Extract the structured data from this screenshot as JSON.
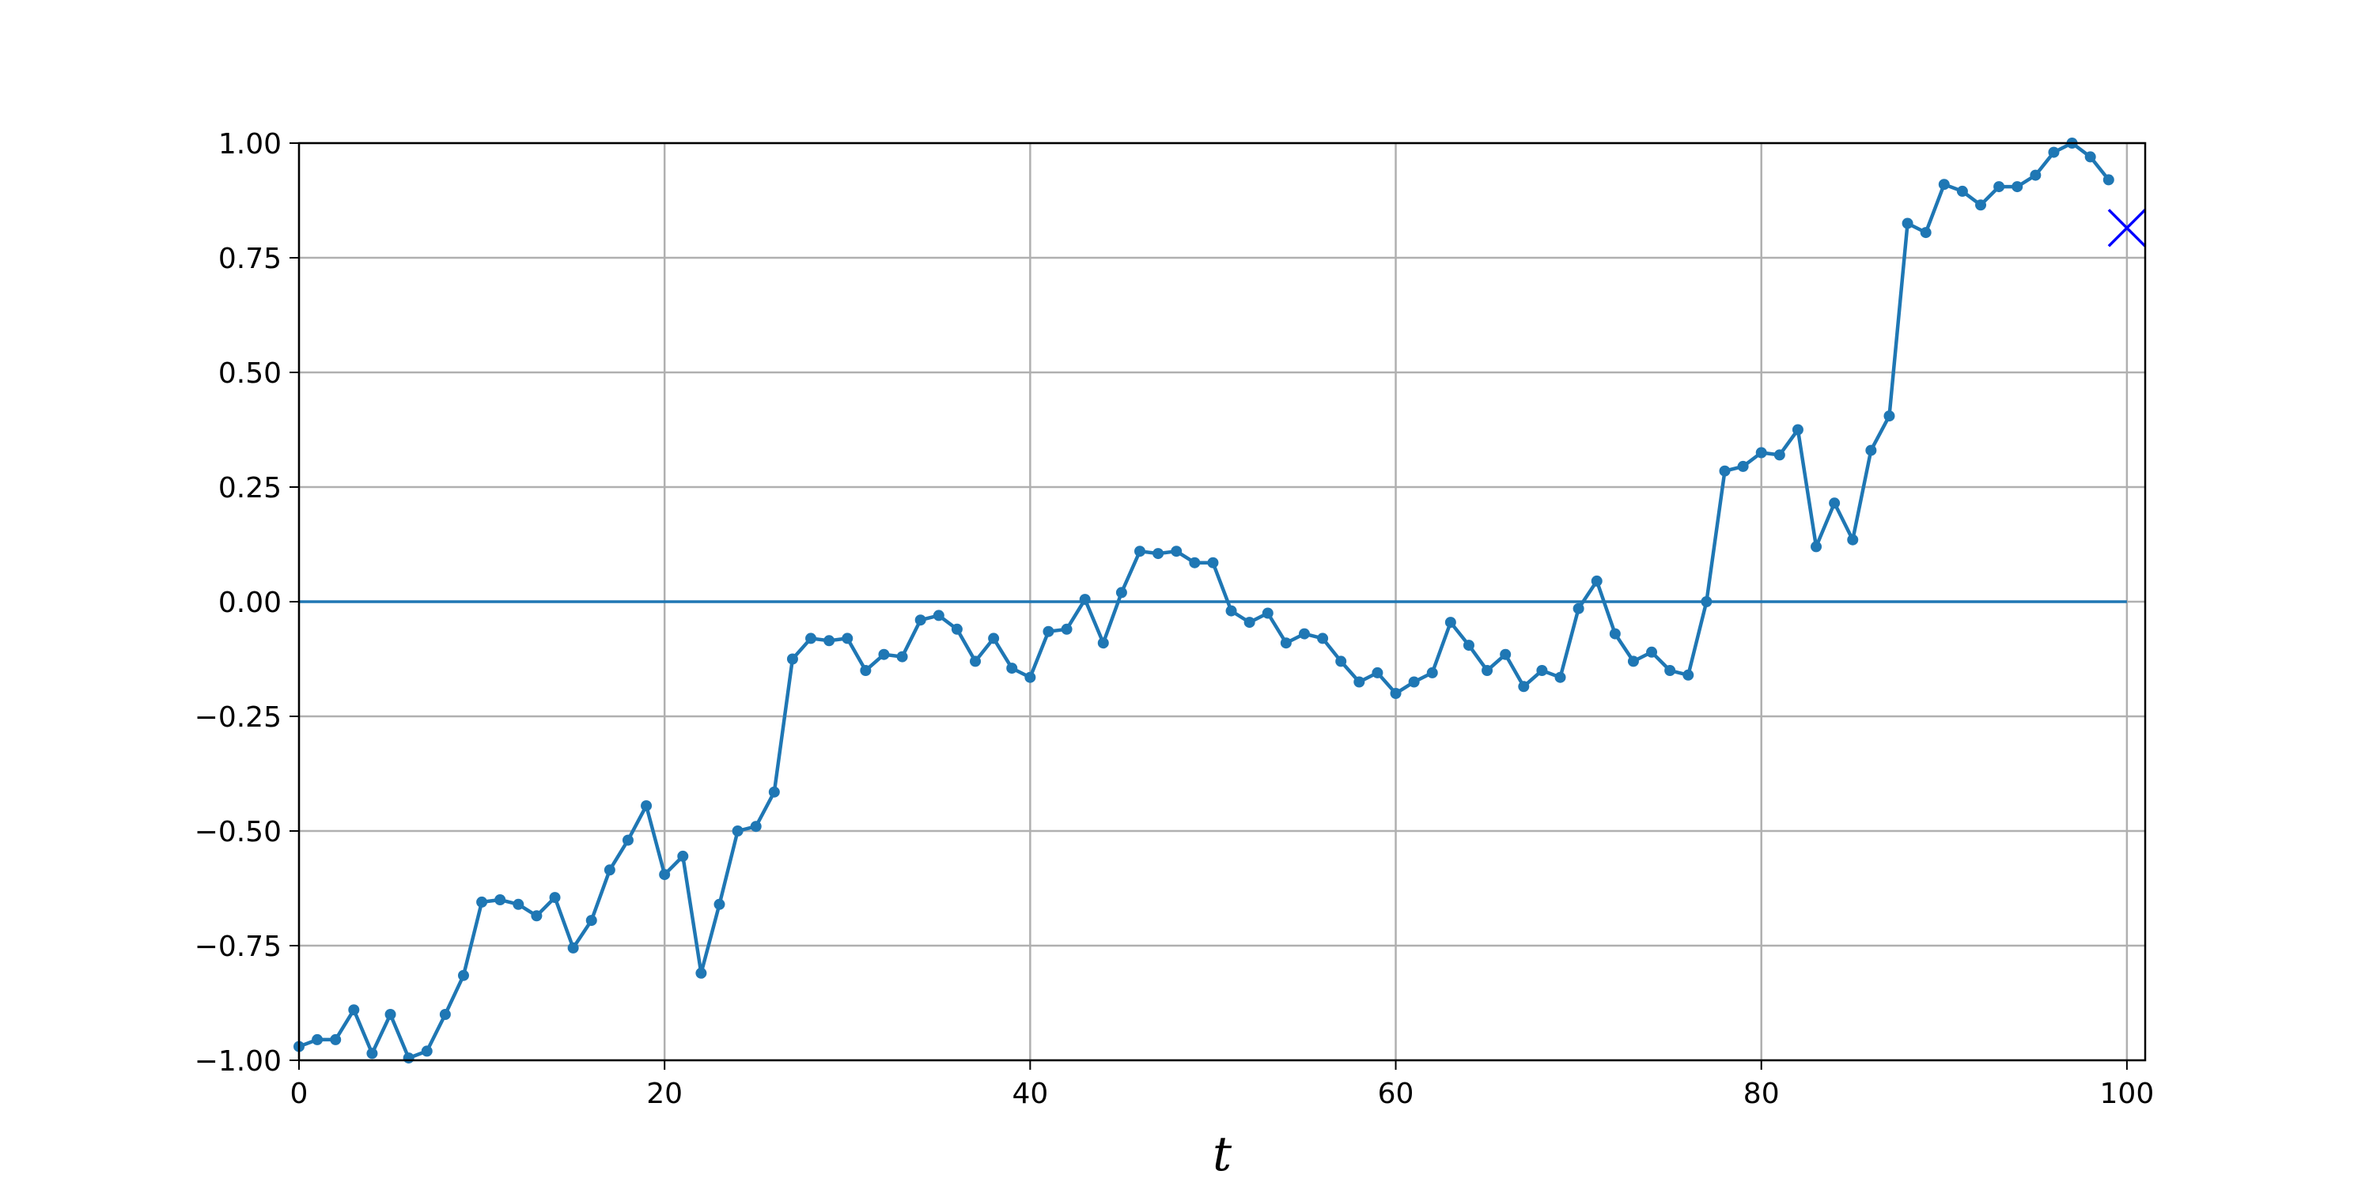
{
  "chart_data": {
    "type": "line",
    "title": "",
    "xlabel": "t",
    "ylabel": "",
    "xlim": [
      0,
      101
    ],
    "ylim": [
      -1.0,
      1.0
    ],
    "grid": true,
    "legend": "none",
    "x_ticks": [
      0,
      20,
      40,
      60,
      80,
      100
    ],
    "x_tick_labels": [
      "0",
      "20",
      "40",
      "60",
      "80",
      "100"
    ],
    "y_ticks": [
      -1.0,
      -0.75,
      -0.5,
      -0.25,
      0.0,
      0.25,
      0.5,
      0.75,
      1.0
    ],
    "y_tick_labels": [
      "−1.00",
      "−0.75",
      "−0.50",
      "−0.25",
      "0.00",
      "0.25",
      "0.50",
      "0.75",
      "1.00"
    ],
    "colors": {
      "series": "#1f77b4",
      "marker_x": "#0000ff",
      "grid": "#b0b0b0"
    },
    "series": [
      {
        "x": [
          0,
          1,
          2,
          3,
          4,
          5,
          6,
          7,
          8,
          9,
          10,
          11,
          12,
          13,
          14,
          15,
          16,
          17,
          18,
          19,
          20,
          21,
          22,
          23,
          24,
          25,
          26,
          27,
          28,
          29,
          30,
          31,
          32,
          33,
          34,
          35,
          36,
          37,
          38,
          39,
          40,
          41,
          42,
          43,
          44,
          45,
          46,
          47,
          48,
          49,
          50,
          51,
          52,
          53,
          54,
          55,
          56,
          57,
          58,
          59,
          60,
          61,
          62,
          63,
          64,
          65,
          66,
          67,
          68,
          69,
          70,
          71,
          72,
          73,
          74,
          75,
          76,
          77,
          78,
          79,
          80,
          81,
          82,
          83,
          84,
          85,
          86,
          87,
          88,
          89,
          90,
          91,
          92,
          93,
          94,
          95,
          96,
          97,
          98,
          99
        ],
        "y": [
          -0.97,
          -0.955,
          -0.955,
          -0.89,
          -0.985,
          -0.9,
          -0.995,
          -0.98,
          -0.9,
          -0.815,
          -0.655,
          -0.65,
          -0.66,
          -0.685,
          -0.645,
          -0.755,
          -0.695,
          -0.585,
          -0.52,
          -0.445,
          -0.595,
          -0.555,
          -0.81,
          -0.66,
          -0.5,
          -0.49,
          -0.415,
          -0.125,
          -0.08,
          -0.085,
          -0.08,
          -0.15,
          -0.115,
          -0.12,
          -0.04,
          -0.03,
          -0.06,
          -0.13,
          -0.08,
          -0.145,
          -0.165,
          -0.065,
          -0.06,
          0.005,
          -0.09,
          0.02,
          0.11,
          0.105,
          0.11,
          0.085,
          0.085,
          -0.02,
          -0.045,
          -0.025,
          -0.09,
          -0.07,
          -0.08,
          -0.13,
          -0.175,
          -0.155,
          -0.2,
          -0.175,
          -0.155,
          -0.045,
          -0.095,
          -0.15,
          -0.115,
          -0.185,
          -0.15,
          -0.165,
          -0.015,
          0.045,
          -0.07,
          -0.13,
          -0.11,
          -0.15,
          -0.16,
          0.0,
          0.285,
          0.295,
          0.325,
          0.32,
          0.375,
          0.12,
          0.215,
          0.135,
          0.33,
          0.405,
          0.825,
          0.805,
          0.91,
          0.895,
          0.865,
          0.905,
          0.905,
          0.93,
          0.98,
          1.0,
          0.97,
          0.92
        ]
      }
    ],
    "hline": {
      "y": 0.0
    },
    "x_marker": {
      "x": 100,
      "y": 0.815,
      "symbol": "x"
    }
  }
}
